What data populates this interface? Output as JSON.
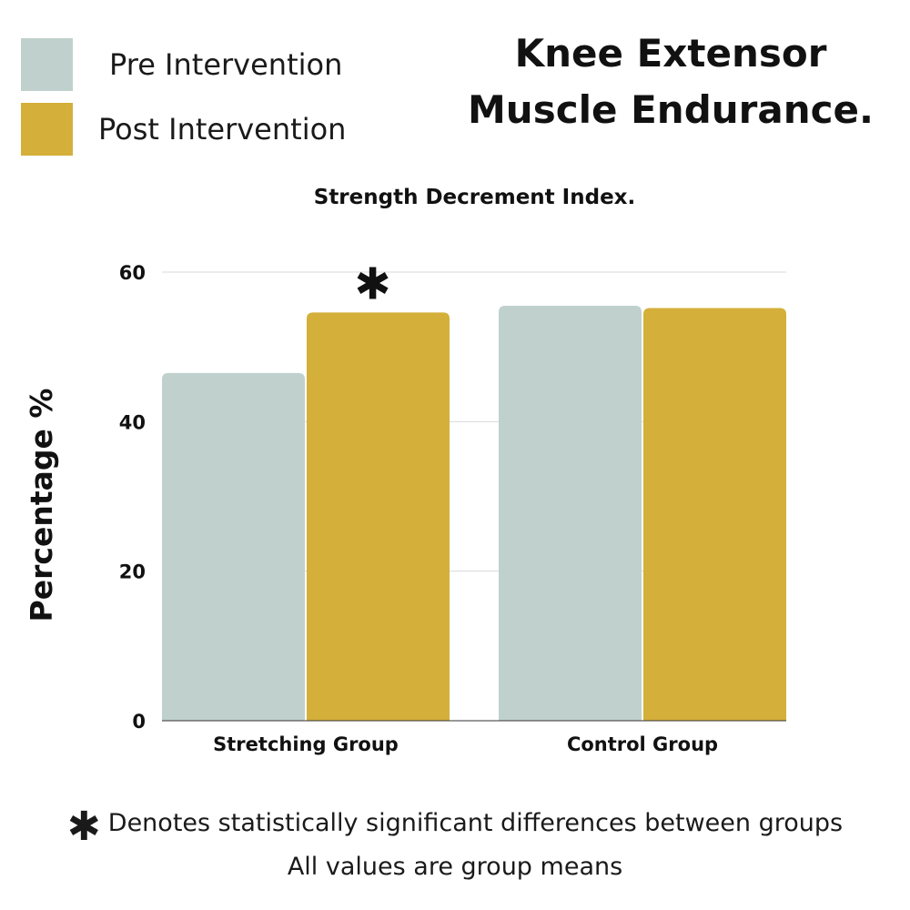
{
  "legend": [
    {
      "label": "Pre Intervention",
      "color": "#c0d1cd"
    },
    {
      "label": "Post Intervention",
      "color": "#d4af3a"
    }
  ],
  "title_line1": "Knee Extensor",
  "title_line2": "Muscle Endurance.",
  "footnotes": {
    "significance_symbol": "✱",
    "significance": "Denotes statistically significant differences between groups",
    "means": "All values are group means"
  },
  "chart_data": {
    "type": "bar",
    "title": "Strength Decrement Index.",
    "ylabel": "Percentage %",
    "xlabel": "",
    "categories": [
      "Stretching Group",
      "Control Group"
    ],
    "series": [
      {
        "name": "Pre Intervention",
        "values": [
          46.5,
          55.5
        ],
        "color": "#c0d1cd"
      },
      {
        "name": "Post Intervention",
        "values": [
          54.6,
          55.2
        ],
        "color": "#d4af3a"
      }
    ],
    "ylim": [
      0,
      60
    ],
    "yticks": [
      0,
      20,
      40,
      60
    ],
    "grid": true,
    "legend_position": "top-left",
    "annotations": [
      {
        "text": "✱",
        "category": "Stretching Group",
        "series": "Post Intervention"
      }
    ]
  }
}
